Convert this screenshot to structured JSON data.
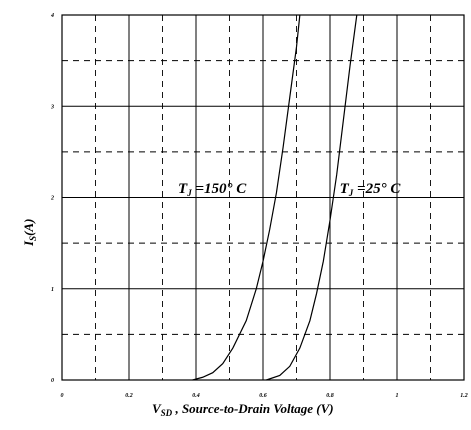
{
  "chart_data": {
    "type": "line",
    "title": "",
    "xlabel": {
      "main": "V",
      "sub": "SD",
      "rest": " , Source-to-Drain Voltage (V)"
    },
    "ylabel": {
      "main": "I",
      "sub": "S",
      "rest": "(A)"
    },
    "xlim": [
      0,
      1.2
    ],
    "ylim": [
      0,
      4
    ],
    "x_ticks": [
      {
        "value": 0,
        "label": "0"
      },
      {
        "value": 0.2,
        "label": "0.2"
      },
      {
        "value": 0.4,
        "label": "0.4"
      },
      {
        "value": 0.6,
        "label": "0.6"
      },
      {
        "value": 0.8,
        "label": "0.8"
      },
      {
        "value": 1.0,
        "label": "1"
      },
      {
        "value": 1.2,
        "label": "1.2"
      }
    ],
    "y_ticks": [
      {
        "value": 0,
        "label": "0"
      },
      {
        "value": 1,
        "label": "1"
      },
      {
        "value": 2,
        "label": "2"
      },
      {
        "value": 3,
        "label": "3"
      },
      {
        "value": 4,
        "label": "4"
      }
    ],
    "grid": {
      "solid_every": 0.2,
      "dashed_every": 0.1,
      "y_solid_every": 1,
      "y_dashed_every": 0.5
    },
    "series": [
      {
        "label": {
          "main": "T",
          "sub": "J",
          "rest": " =150° C"
        },
        "points": [
          [
            0.39,
            0.0
          ],
          [
            0.42,
            0.03
          ],
          [
            0.45,
            0.08
          ],
          [
            0.48,
            0.18
          ],
          [
            0.51,
            0.35
          ],
          [
            0.55,
            0.65
          ],
          [
            0.58,
            1.0
          ],
          [
            0.6,
            1.3
          ],
          [
            0.62,
            1.65
          ],
          [
            0.64,
            2.05
          ],
          [
            0.66,
            2.55
          ],
          [
            0.68,
            3.1
          ],
          [
            0.7,
            3.65
          ],
          [
            0.71,
            4.0
          ]
        ]
      },
      {
        "label": {
          "main": "T",
          "sub": "J",
          "rest": " =25° C"
        },
        "points": [
          [
            0.61,
            0.0
          ],
          [
            0.65,
            0.05
          ],
          [
            0.68,
            0.15
          ],
          [
            0.71,
            0.35
          ],
          [
            0.74,
            0.65
          ],
          [
            0.76,
            0.95
          ],
          [
            0.78,
            1.3
          ],
          [
            0.8,
            1.75
          ],
          [
            0.82,
            2.25
          ],
          [
            0.84,
            2.85
          ],
          [
            0.86,
            3.45
          ],
          [
            0.88,
            4.0
          ]
        ]
      }
    ]
  }
}
